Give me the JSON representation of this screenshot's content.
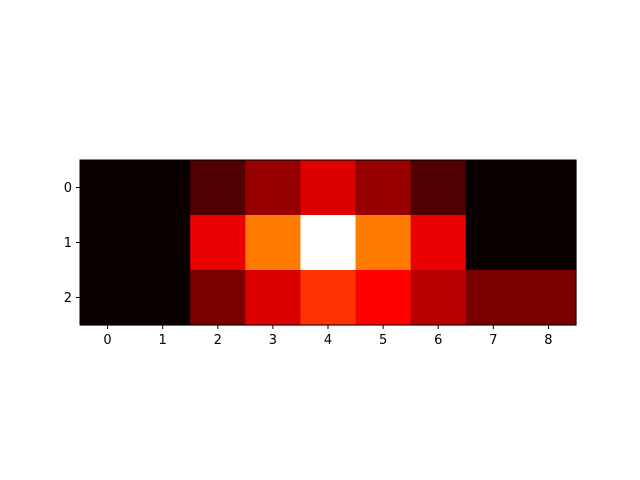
{
  "chart_data": {
    "type": "heatmap",
    "title": "",
    "xlabel": "",
    "ylabel": "",
    "colormap": "hot",
    "x_ticks": [
      "0",
      "1",
      "2",
      "3",
      "4",
      "5",
      "6",
      "7",
      "8"
    ],
    "y_ticks": [
      "0",
      "1",
      "2"
    ],
    "grid": false,
    "colors": {
      "background": "#ffffff",
      "axes": "#000000"
    },
    "values": [
      [
        0.0,
        0.0,
        0.1,
        0.2,
        0.3,
        0.2,
        0.1,
        0.0,
        0.0
      ],
      [
        0.0,
        0.0,
        0.32,
        0.55,
        1.0,
        0.55,
        0.32,
        0.0,
        0.0
      ],
      [
        0.0,
        0.0,
        0.16,
        0.3,
        0.44,
        0.36,
        0.25,
        0.16,
        0.16
      ]
    ]
  }
}
